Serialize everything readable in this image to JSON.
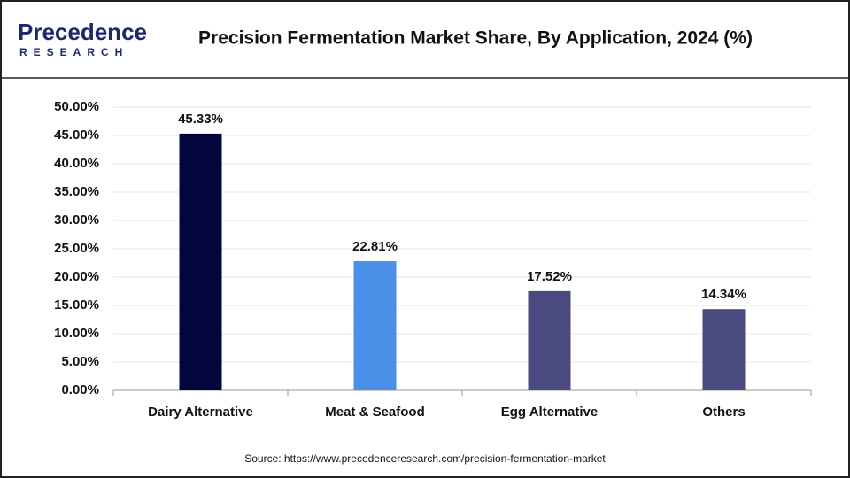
{
  "logo": {
    "name": "Precedence",
    "tagline": "RESEARCH"
  },
  "chart_data": {
    "type": "bar",
    "title": "Precision Fermentation Market Share, By Application, 2024 (%)",
    "categories": [
      "Dairy Alternative",
      "Meat & Seafood",
      "Egg Alternative",
      "Others"
    ],
    "values": [
      45.33,
      22.81,
      17.52,
      14.34
    ],
    "value_labels": [
      "45.33%",
      "22.81%",
      "17.52%",
      "14.34%"
    ],
    "colors": [
      "#03053d",
      "#4a90e8",
      "#4a4a80",
      "#4a4a80"
    ],
    "ylim": [
      0,
      50
    ],
    "yticks": [
      {
        "value": 0,
        "label": "0.00%"
      },
      {
        "value": 5,
        "label": "5.00%"
      },
      {
        "value": 10,
        "label": "10.00%"
      },
      {
        "value": 15,
        "label": "15.00%"
      },
      {
        "value": 20,
        "label": "20.00%"
      },
      {
        "value": 25,
        "label": "25.00%"
      },
      {
        "value": 30,
        "label": "30.00%"
      },
      {
        "value": 35,
        "label": "35.00%"
      },
      {
        "value": 40,
        "label": "40.00%"
      },
      {
        "value": 45,
        "label": "45.00%"
      },
      {
        "value": 50,
        "label": "50.00%"
      }
    ],
    "grid": true,
    "source": "Source: https://www.precedenceresearch.com/precision-fermentation-market"
  }
}
